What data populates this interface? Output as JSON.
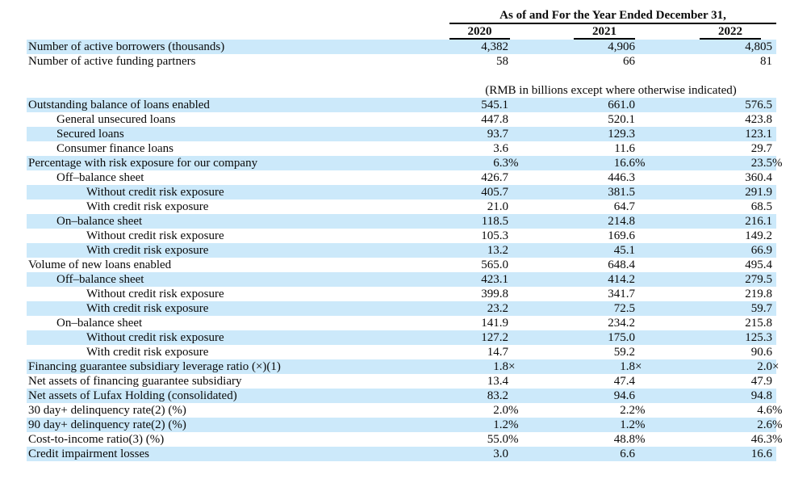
{
  "colors": {
    "row_highlight": "#cce9fa",
    "rule": "#000000",
    "text": "#0a0a0a"
  },
  "header": {
    "title": "As of and For the Year Ended December 31,",
    "years": [
      "2020",
      "2021",
      "2022"
    ]
  },
  "table": {
    "unit_note": "(RMB in billions except where otherwise indicated)",
    "rows": [
      {
        "label": "Number of active borrowers (thousands)",
        "indent": 0,
        "highlight": true,
        "values": [
          "4,382",
          "4,906",
          "4,805"
        ]
      },
      {
        "label": "Number of active funding partners",
        "indent": 0,
        "highlight": false,
        "values": [
          "58",
          "66",
          "81"
        ]
      },
      {
        "type": "spacer"
      },
      {
        "type": "note",
        "note": "(RMB in billions except where otherwise indicated)"
      },
      {
        "label": "Outstanding balance of loans enabled",
        "indent": 0,
        "highlight": true,
        "values": [
          "545.1",
          "661.0",
          "576.5"
        ]
      },
      {
        "label": "General unsecured loans",
        "indent": 1,
        "highlight": false,
        "values": [
          "447.8",
          "520.1",
          "423.8"
        ]
      },
      {
        "label": "Secured loans",
        "indent": 1,
        "highlight": true,
        "values": [
          "93.7",
          "129.3",
          "123.1"
        ]
      },
      {
        "label": "Consumer finance loans",
        "indent": 1,
        "highlight": false,
        "values": [
          "3.6",
          "11.6",
          "29.7"
        ]
      },
      {
        "label": "Percentage with risk exposure for our company",
        "indent": 0,
        "highlight": true,
        "values": [
          "6.3%",
          "16.6%",
          "23.5%"
        ]
      },
      {
        "label": "Off–balance sheet",
        "indent": 1,
        "highlight": false,
        "values": [
          "426.7",
          "446.3",
          "360.4"
        ]
      },
      {
        "label": "Without credit risk exposure",
        "indent": 2,
        "highlight": true,
        "values": [
          "405.7",
          "381.5",
          "291.9"
        ]
      },
      {
        "label": "With credit risk exposure",
        "indent": 2,
        "highlight": false,
        "values": [
          "21.0",
          "64.7",
          "68.5"
        ]
      },
      {
        "label": "On–balance sheet",
        "indent": 1,
        "highlight": true,
        "values": [
          "118.5",
          "214.8",
          "216.1"
        ]
      },
      {
        "label": "Without credit risk exposure",
        "indent": 2,
        "highlight": false,
        "values": [
          "105.3",
          "169.6",
          "149.2"
        ]
      },
      {
        "label": "With credit risk exposure",
        "indent": 2,
        "highlight": true,
        "values": [
          "13.2",
          "45.1",
          "66.9"
        ]
      },
      {
        "label": "Volume of new loans enabled",
        "indent": 0,
        "highlight": false,
        "values": [
          "565.0",
          "648.4",
          "495.4"
        ]
      },
      {
        "label": "Off–balance sheet",
        "indent": 1,
        "highlight": true,
        "values": [
          "423.1",
          "414.2",
          "279.5"
        ]
      },
      {
        "label": "Without credit risk exposure",
        "indent": 2,
        "highlight": false,
        "values": [
          "399.8",
          "341.7",
          "219.8"
        ]
      },
      {
        "label": "With credit risk exposure",
        "indent": 2,
        "highlight": true,
        "values": [
          "23.2",
          "72.5",
          "59.7"
        ]
      },
      {
        "label": "On–balance sheet",
        "indent": 1,
        "highlight": false,
        "values": [
          "141.9",
          "234.2",
          "215.8"
        ]
      },
      {
        "label": "Without credit risk exposure",
        "indent": 2,
        "highlight": true,
        "values": [
          "127.2",
          "175.0",
          "125.3"
        ]
      },
      {
        "label": "With credit risk exposure",
        "indent": 2,
        "highlight": false,
        "values": [
          "14.7",
          "59.2",
          "90.6"
        ]
      },
      {
        "label": "Financing guarantee subsidiary leverage ratio (×)(1)",
        "indent": 0,
        "highlight": true,
        "values": [
          "1.8×",
          "1.8×",
          "2.0×"
        ]
      },
      {
        "label": "Net assets of financing guarantee subsidiary",
        "indent": 0,
        "highlight": false,
        "values": [
          "13.4",
          "47.4",
          "47.9"
        ]
      },
      {
        "label": "Net assets of Lufax Holding (consolidated)",
        "indent": 0,
        "highlight": true,
        "values": [
          "83.2",
          "94.6",
          "94.8"
        ]
      },
      {
        "label": "30 day+ delinquency rate(2) (%)",
        "indent": 0,
        "highlight": false,
        "values": [
          "2.0%",
          "2.2%",
          "4.6%"
        ]
      },
      {
        "label": "90 day+ delinquency rate(2) (%)",
        "indent": 0,
        "highlight": true,
        "values": [
          "1.2%",
          "1.2%",
          "2.6%"
        ]
      },
      {
        "label": "Cost-to-income ratio(3) (%)",
        "indent": 0,
        "highlight": false,
        "values": [
          "55.0%",
          "48.8%",
          "46.3%"
        ]
      },
      {
        "label": "Credit impairment losses",
        "indent": 0,
        "highlight": true,
        "values": [
          "3.0",
          "6.6",
          "16.6"
        ]
      }
    ]
  }
}
